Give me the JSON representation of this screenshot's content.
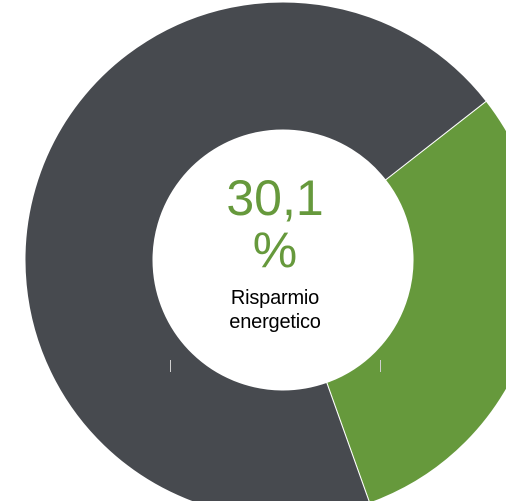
{
  "chart_data": {
    "type": "pie",
    "variant": "donut",
    "slices": [
      {
        "value": 30.1,
        "color": "#66993c"
      },
      {
        "value": 69.9,
        "color": "#474a4f"
      }
    ],
    "center_value": "30,1",
    "center_unit": "%",
    "center_caption_line1": "Risparmio",
    "center_caption_line2": "energetico",
    "legend": "none"
  }
}
